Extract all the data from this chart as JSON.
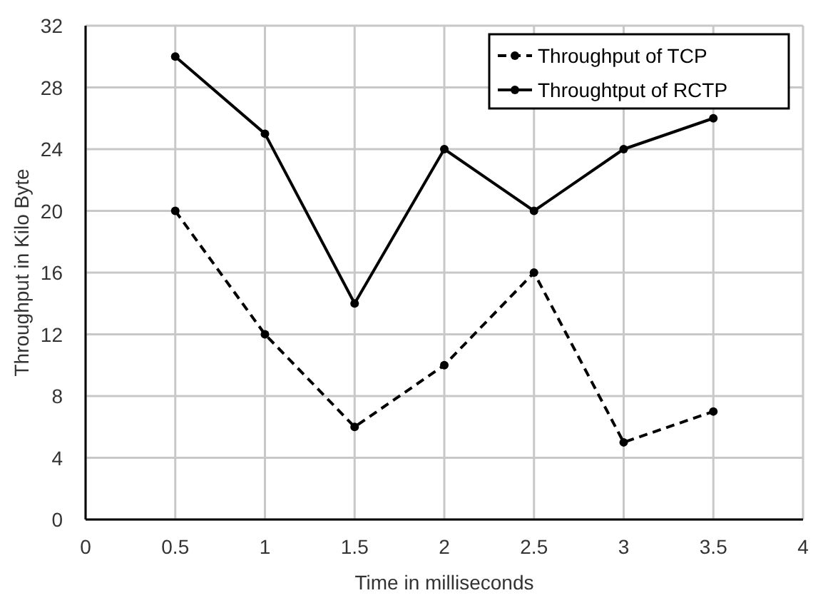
{
  "chart_data": {
    "type": "line",
    "xlabel": "Time in milliseconds",
    "ylabel": "Throughput in Kilo Byte",
    "x": [
      0.5,
      1,
      1.5,
      2,
      2.5,
      3,
      3.5
    ],
    "series": [
      {
        "name": "Throughput of TCP",
        "color": "#000000",
        "line_style": "dashed",
        "values": [
          20,
          12,
          6,
          10,
          16,
          5,
          7
        ]
      },
      {
        "name": "Throughtput of RCTP",
        "color": "#000000",
        "line_style": "solid",
        "values": [
          30,
          25,
          14,
          24,
          20,
          24,
          26
        ]
      }
    ],
    "xlim": [
      0,
      4
    ],
    "xticks": [
      0,
      0.5,
      1,
      1.5,
      2,
      2.5,
      3,
      3.5,
      4
    ],
    "ylim": [
      0,
      32
    ],
    "yticks": [
      0,
      4,
      8,
      12,
      16,
      20,
      24,
      28,
      32
    ],
    "grid": true,
    "legend": "top right",
    "marker": "circle"
  }
}
